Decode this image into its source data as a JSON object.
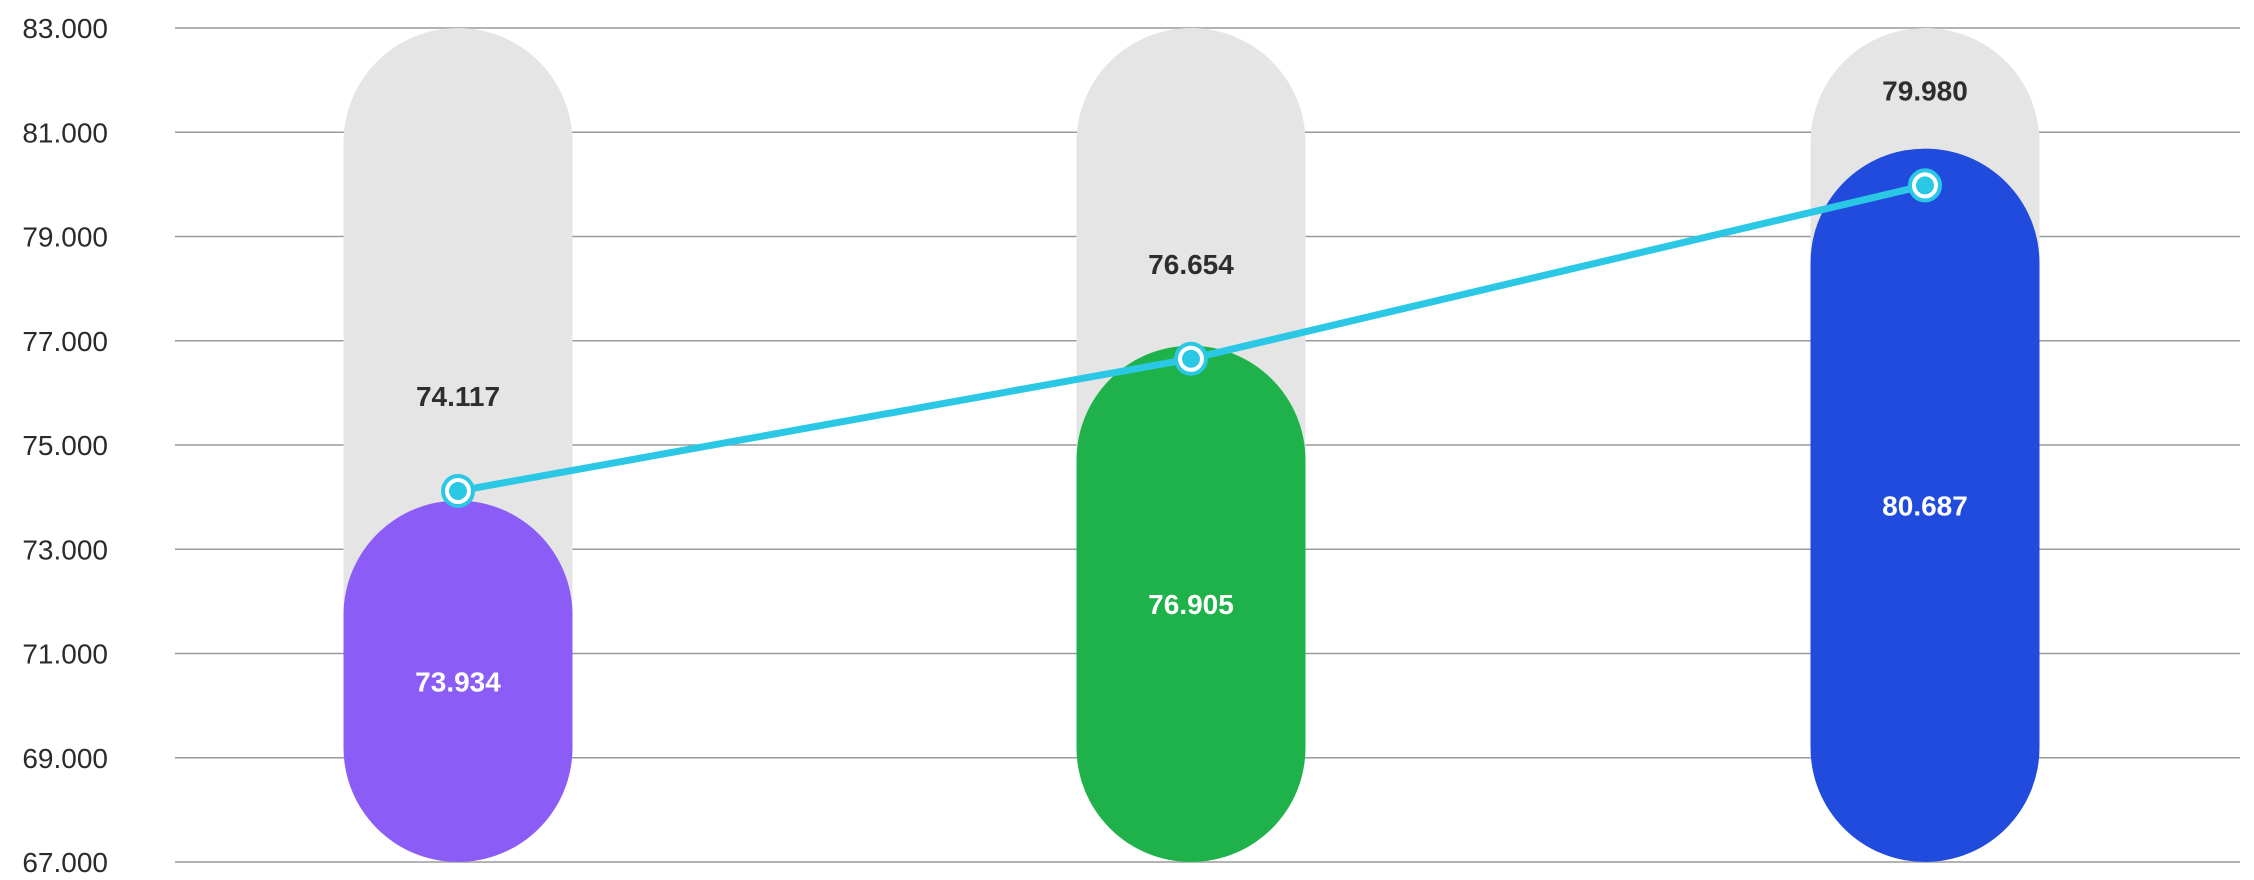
{
  "chart_data": {
    "type": "bar",
    "categories": [
      "",
      "",
      ""
    ],
    "series": [
      {
        "kind": "bar",
        "values": [
          73934,
          76905,
          80687
        ],
        "colors": [
          "#8b5cf6",
          "#1fb24a",
          "#214bdc"
        ]
      },
      {
        "kind": "line",
        "values": [
          74117,
          76654,
          79980
        ],
        "color": "#2bc8e6"
      }
    ],
    "value_labels": {
      "bars": [
        "73.934",
        "76.905",
        "80.687"
      ],
      "line": [
        "74.117",
        "76.654",
        "79.980"
      ]
    },
    "ylim": [
      67000,
      83000
    ],
    "yticks": [
      67000,
      69000,
      71000,
      73000,
      75000,
      77000,
      79000,
      81000,
      83000
    ],
    "ytick_labels": [
      "67.000",
      "69.000",
      "71.000",
      "73.000",
      "75.000",
      "77.000",
      "79.000",
      "81.000",
      "83.000"
    ],
    "grid": true,
    "background_track_color": "#e5e5e5",
    "title": "",
    "xlabel": "",
    "ylabel": ""
  }
}
